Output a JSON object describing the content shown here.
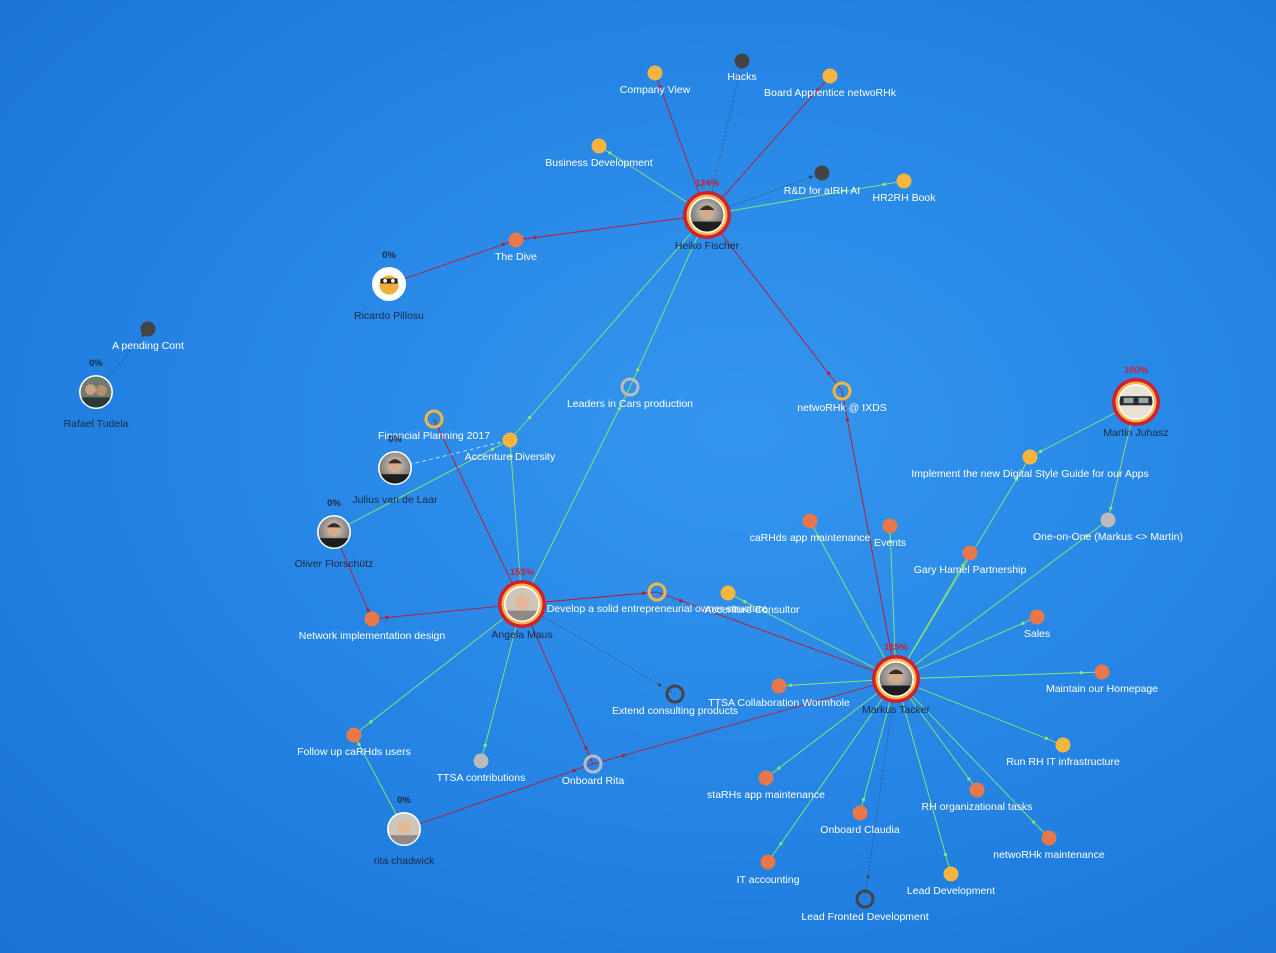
{
  "colors": {
    "background": "#2a8ae8",
    "edge_green": "#8fe86a",
    "edge_red": "#c4162a",
    "edge_dark": "#3a4a6a",
    "dot_orange": "#e8774a",
    "dot_yellow": "#f5b53f",
    "dot_dark": "#444444",
    "dot_gray": "#bbbbbb",
    "ring_red": "#d01f2f",
    "ring_yellow": "#f2b84b",
    "label_white": "#ffffff",
    "label_dark": "#1f2a44"
  },
  "people": [
    {
      "id": "heiko",
      "name": "Heiko Fischer",
      "pct": "124%",
      "pct_color": "#d01f2f",
      "ring": "red",
      "avatar": "man-avatar"
    },
    {
      "id": "markus",
      "name": "Markus Tacker",
      "pct": "115%",
      "pct_color": "#d01f2f",
      "ring": "red",
      "avatar": "man-avatar"
    },
    {
      "id": "angela",
      "name": "Angela Maus",
      "pct": "153%",
      "pct_color": "#d01f2f",
      "ring": "red",
      "avatar": "woman-avatar"
    },
    {
      "id": "martin",
      "name": "Martin Juhasz",
      "pct": "100%",
      "pct_color": "#d01f2f",
      "ring": "red",
      "avatar": "glasses-avatar"
    },
    {
      "id": "ricardo",
      "name": "Ricardo Pillosu",
      "pct": "0%",
      "pct_color": "#1f2a44",
      "ring": "none",
      "avatar": "cartoon-avatar"
    },
    {
      "id": "rafael",
      "name": "Rafael Tudela",
      "pct": "0%",
      "pct_color": "#1f2a44",
      "ring": "none",
      "avatar": "group-avatar"
    },
    {
      "id": "julius",
      "name": "Julius van de Laar",
      "pct": "0%",
      "pct_color": "#1f2a44",
      "ring": "none",
      "avatar": "man-avatar"
    },
    {
      "id": "oliver",
      "name": "Oliver Florschütz",
      "pct": "0%",
      "pct_color": "#1f2a44",
      "ring": "none",
      "avatar": "man-avatar"
    },
    {
      "id": "rita",
      "name": "rita chadwick",
      "pct": "0%",
      "pct_color": "#1f2a44",
      "ring": "none",
      "avatar": "woman-avatar"
    }
  ],
  "tasks": [
    {
      "id": "company_view",
      "label": "Company View",
      "type": "dot",
      "color": "yellow"
    },
    {
      "id": "hacks",
      "label": "Hacks",
      "type": "dot",
      "color": "dark"
    },
    {
      "id": "board_app",
      "label": "Board Apprentice netwoRHk",
      "type": "dot",
      "color": "yellow"
    },
    {
      "id": "biz_dev",
      "label": "Business Development",
      "type": "dot",
      "color": "yellow"
    },
    {
      "id": "rd_airh",
      "label": "R&D for aIRH AI",
      "type": "dot",
      "color": "dark"
    },
    {
      "id": "hr2rh",
      "label": "HR2RH Book",
      "type": "dot",
      "color": "yellow"
    },
    {
      "id": "the_dive",
      "label": "The Dive",
      "type": "dot",
      "color": "orange"
    },
    {
      "id": "pending",
      "label": "A pending Cont",
      "type": "dot",
      "color": "dark"
    },
    {
      "id": "leaders_cars",
      "label": "Leaders in Cars production",
      "type": "ring",
      "color": "gray"
    },
    {
      "id": "ixds",
      "label": "netwoRHk @ IXDS",
      "type": "ring",
      "color": "yellow"
    },
    {
      "id": "fin_plan",
      "label": "Financial Planning 2017",
      "type": "ring",
      "color": "yellow"
    },
    {
      "id": "acc_div",
      "label": "Accenture Diversity",
      "type": "dot",
      "color": "yellow"
    },
    {
      "id": "digital_style",
      "label": "Implement the new Digital Style Guide for our Apps",
      "type": "dot",
      "color": "yellow"
    },
    {
      "id": "one_on_one",
      "label": "One-on-One (Markus <> Martin)",
      "type": "dot",
      "color": "gray"
    },
    {
      "id": "carhds_app",
      "label": "caRHds app maintenance",
      "type": "dot",
      "color": "orange"
    },
    {
      "id": "events",
      "label": "Events",
      "type": "dot",
      "color": "orange"
    },
    {
      "id": "gary_hamel",
      "label": "Gary Hamel Partnership",
      "type": "dot",
      "color": "orange"
    },
    {
      "id": "network_impl",
      "label": "Network implementation design",
      "type": "dot",
      "color": "orange"
    },
    {
      "id": "entre_struct",
      "label": "Develop a solid entrepreneurial owner structure",
      "type": "ring",
      "color": "yellow"
    },
    {
      "id": "acc_consult",
      "label": "Accenture Consultor",
      "type": "dot",
      "color": "yellow"
    },
    {
      "id": "sales",
      "label": "Sales",
      "type": "dot",
      "color": "orange"
    },
    {
      "id": "homepage",
      "label": "Maintain our Homepage",
      "type": "dot",
      "color": "orange"
    },
    {
      "id": "extend_consult",
      "label": "Extend consulting products",
      "type": "ring",
      "color": "dark"
    },
    {
      "id": "ttsa_worm",
      "label": "TTSA Collaboration Wormhole",
      "type": "dot",
      "color": "orange"
    },
    {
      "id": "follow_carhds",
      "label": "Follow up caRHds users",
      "type": "dot",
      "color": "orange"
    },
    {
      "id": "ttsa_contrib",
      "label": "TTSA contributions",
      "type": "dot",
      "color": "gray"
    },
    {
      "id": "onboard_rita",
      "label": "Onboard Rita",
      "type": "ring",
      "color": "gray"
    },
    {
      "id": "rh_it",
      "label": "Run RH IT infrastructure",
      "type": "dot",
      "color": "yellow"
    },
    {
      "id": "starhs",
      "label": "staRHs app maintenance",
      "type": "dot",
      "color": "orange"
    },
    {
      "id": "rh_org",
      "label": "RH organizational tasks",
      "type": "dot",
      "color": "orange"
    },
    {
      "id": "onboard_claudia",
      "label": "Onboard Claudia",
      "type": "dot",
      "color": "orange"
    },
    {
      "id": "networhk_maint",
      "label": "netwoRHk maintenance",
      "type": "dot",
      "color": "orange"
    },
    {
      "id": "it_accounting",
      "label": "IT accounting",
      "type": "dot",
      "color": "orange"
    },
    {
      "id": "lead_dev",
      "label": "Lead Development",
      "type": "dot",
      "color": "yellow"
    },
    {
      "id": "lead_frontend",
      "label": "Lead Fronted Development",
      "type": "ring",
      "color": "dark"
    }
  ]
}
